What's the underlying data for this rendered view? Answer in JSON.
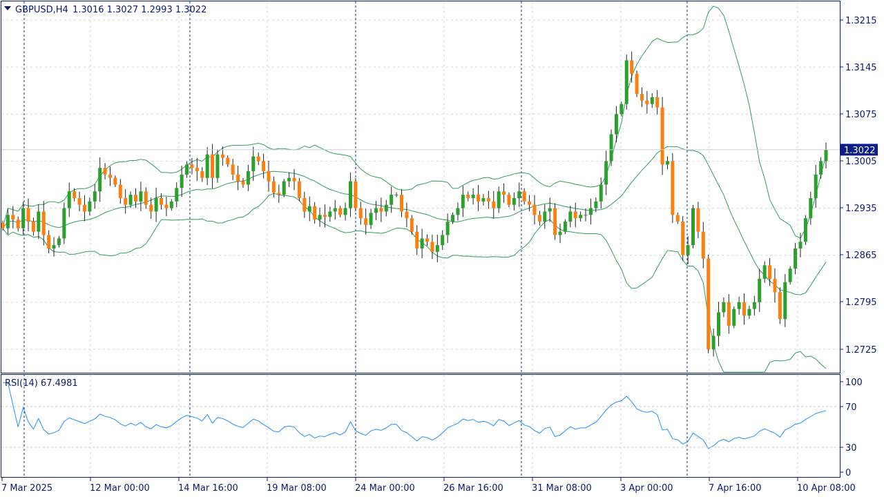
{
  "header": {
    "symbol_info": "GBPUSD,H4",
    "ohlc": "1.3016 1.3027 1.2993 1.3022",
    "collapse_icon": "triangle-down-icon"
  },
  "price_axis": {
    "labels": [
      "1.3215",
      "1.3145",
      "1.3075",
      "1.3005",
      "1.2935",
      "1.2865",
      "1.2795",
      "1.2725"
    ],
    "current_price": "1.3022",
    "current_price_bg": "#0b1f8a"
  },
  "rsi": {
    "label": "RSI(14) 67.4981",
    "levels": [
      "100",
      "70",
      "30",
      "0"
    ]
  },
  "time_axis": {
    "labels": [
      "7 Mar 2025",
      "12 Mar 00:00",
      "14 Mar 16:00",
      "19 Mar 08:00",
      "24 Mar 00:00",
      "26 Mar 16:00",
      "31 Mar 08:00",
      "3 Apr 00:00",
      "7 Apr 16:00",
      "10 Apr 08:00"
    ]
  },
  "colors": {
    "bull": "#2ca02c",
    "bear": "#ff7f0e",
    "bands": "#2e9e5b",
    "rsi_line": "#1e90ff",
    "grid": "#cfd6e0",
    "frame": "#0a1a6e"
  },
  "chart_data": {
    "type": "candlestick",
    "symbol": "GBPUSD",
    "timeframe": "H4",
    "indicators": [
      "Bollinger Bands",
      "RSI(14)"
    ],
    "close": [
      1.2905,
      1.2925,
      1.2918,
      1.2905,
      1.2935,
      1.2915,
      1.29,
      1.293,
      1.2895,
      1.2875,
      1.288,
      1.289,
      1.2935,
      1.296,
      1.295,
      1.294,
      1.293,
      1.2945,
      1.296,
      1.2995,
      1.2985,
      1.298,
      1.297,
      1.295,
      1.294,
      1.2955,
      1.2945,
      1.296,
      1.294,
      1.293,
      1.295,
      1.294,
      1.2935,
      1.2945,
      1.2965,
      1.2985,
      1.3,
      1.2995,
      1.299,
      1.298,
      1.3015,
      1.298,
      1.3015,
      1.301,
      1.3,
      1.2985,
      1.2975,
      1.297,
      1.299,
      1.3012,
      1.3005,
      1.299,
      1.2975,
      1.2958,
      1.2955,
      1.2975,
      1.298,
      1.2975,
      1.295,
      1.293,
      1.2938,
      1.2918,
      1.2925,
      1.2922,
      1.293,
      1.2935,
      1.2925,
      1.2935,
      1.2975,
      1.2935,
      1.292,
      1.291,
      1.2928,
      1.2935,
      1.293,
      1.294,
      1.2955,
      1.2955,
      1.293,
      1.292,
      1.29,
      1.2875,
      1.289,
      1.2885,
      1.287,
      1.288,
      1.2895,
      1.2915,
      1.2925,
      1.2935,
      1.2955,
      1.295,
      1.2955,
      1.2945,
      1.295,
      1.2945,
      1.2935,
      1.296,
      1.2955,
      1.294,
      1.295,
      1.296,
      1.2945,
      1.294,
      1.2925,
      1.2915,
      1.293,
      1.2935,
      1.2895,
      1.29,
      1.2915,
      1.293,
      1.292,
      1.2925,
      1.2925,
      1.2935,
      1.2945,
      1.297,
      1.3005,
      1.3045,
      1.3075,
      1.309,
      1.3155,
      1.3135,
      1.3105,
      1.3095,
      1.309,
      1.31,
      1.3085,
      1.3,
      1.3005,
      1.2925,
      1.2915,
      1.2865,
      1.288,
      1.2935,
      1.29,
      1.286,
      1.2725,
      1.2745,
      1.278,
      1.2795,
      1.276,
      1.2785,
      1.2795,
      1.2775,
      1.2785,
      1.2795,
      1.283,
      1.285,
      1.283,
      1.281,
      1.277,
      1.2825,
      1.2845,
      1.2875,
      1.2885,
      1.292,
      1.295,
      1.2985,
      1.3005,
      1.3022
    ],
    "price_ylim": [
      1.2695,
      1.3245
    ],
    "price_ticks": [
      1.2725,
      1.2795,
      1.2865,
      1.2935,
      1.3005,
      1.3075,
      1.3145,
      1.3215
    ],
    "current_price": 1.3022,
    "rsi_value": 67.4981,
    "rsi_ylim": [
      0,
      100
    ],
    "rsi_levels": [
      30,
      70
    ]
  }
}
